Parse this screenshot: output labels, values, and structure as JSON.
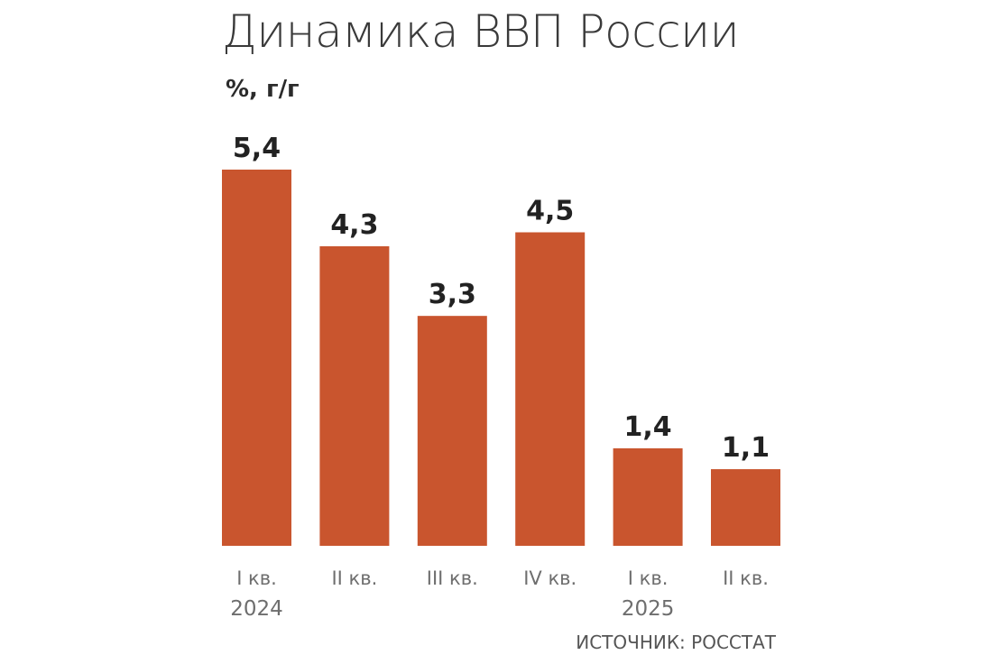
{
  "title": "Динамика ВВП России",
  "unit": "%, г/г",
  "source": "ИСТОЧНИК: РОССТАТ",
  "colors": {
    "bar": "#c9552e"
  },
  "chart_data": {
    "type": "bar",
    "title": "Динамика ВВП России",
    "ylabel": "%, г/г",
    "xlabel": "",
    "categories": [
      "I кв.",
      "II кв.",
      "III кв.",
      "IV кв.",
      "I кв.",
      "II кв."
    ],
    "values": [
      5.4,
      4.3,
      3.3,
      4.5,
      1.4,
      1.1
    ],
    "value_labels": [
      "5,4",
      "4,3",
      "3,3",
      "4,5",
      "1,4",
      "1,1"
    ],
    "year_labels": [
      "2024",
      "",
      "",
      "",
      "2025",
      ""
    ],
    "ylim": [
      0,
      5.4
    ],
    "grid": false,
    "legend": "none"
  }
}
